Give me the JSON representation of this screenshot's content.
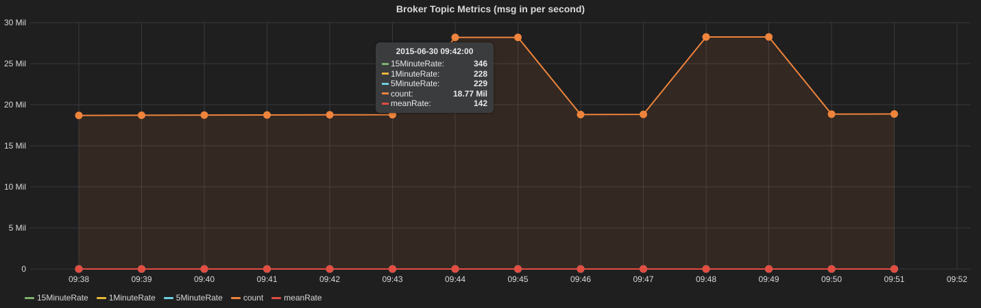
{
  "panel": {
    "title": "Broker Topic Metrics (msg in per second)"
  },
  "tooltip": {
    "time": "2015-06-30 09:42:00",
    "rows": [
      {
        "name": "15MinuteRate:",
        "value": "346",
        "color": "#7eb26d"
      },
      {
        "name": "1MinuteRate:",
        "value": "228",
        "color": "#eab839"
      },
      {
        "name": "5MinuteRate:",
        "value": "229",
        "color": "#6ed0e0"
      },
      {
        "name": "count:",
        "value": "18.77 Mil",
        "color": "#ef843c"
      },
      {
        "name": "meanRate:",
        "value": "142",
        "color": "#e24d42"
      }
    ]
  },
  "chart_data": {
    "type": "line",
    "title": "Broker Topic Metrics (msg in per second)",
    "x": [
      "09:38",
      "09:39",
      "09:40",
      "09:41",
      "09:42",
      "09:43",
      "09:44",
      "09:45",
      "09:46",
      "09:47",
      "09:48",
      "09:49",
      "09:50",
      "09:51"
    ],
    "x_ticks": [
      "09:38",
      "09:39",
      "09:40",
      "09:41",
      "09:42",
      "09:43",
      "09:44",
      "09:45",
      "09:46",
      "09:47",
      "09:48",
      "09:49",
      "09:50",
      "09:51",
      "09:52"
    ],
    "y_ticks": [
      "0",
      "5 Mil",
      "10 Mil",
      "15 Mil",
      "20 Mil",
      "25 Mil",
      "30 Mil"
    ],
    "ylim": [
      0,
      30000000
    ],
    "grid": true,
    "legend_position": "bottom-left",
    "series": [
      {
        "name": "15MinuteRate",
        "color": "#7eb26d",
        "values": [
          346,
          346,
          346,
          346,
          346,
          346,
          346,
          346,
          346,
          346,
          346,
          346,
          346,
          346
        ]
      },
      {
        "name": "1MinuteRate",
        "color": "#eab839",
        "values": [
          228,
          228,
          228,
          228,
          228,
          228,
          228,
          228,
          228,
          228,
          228,
          228,
          228,
          228
        ]
      },
      {
        "name": "5MinuteRate",
        "color": "#6ed0e0",
        "values": [
          229,
          229,
          229,
          229,
          229,
          229,
          229,
          229,
          229,
          229,
          229,
          229,
          229,
          229
        ]
      },
      {
        "name": "count",
        "color": "#ef843c",
        "fill": true,
        "values": [
          18700000,
          18720000,
          18740000,
          18750000,
          18770000,
          18780000,
          28200000,
          28200000,
          18800000,
          18820000,
          28250000,
          28250000,
          18850000,
          18870000
        ]
      },
      {
        "name": "meanRate",
        "color": "#e24d42",
        "values": [
          142,
          142,
          142,
          142,
          142,
          142,
          142,
          142,
          142,
          142,
          142,
          142,
          142,
          142
        ]
      }
    ]
  }
}
